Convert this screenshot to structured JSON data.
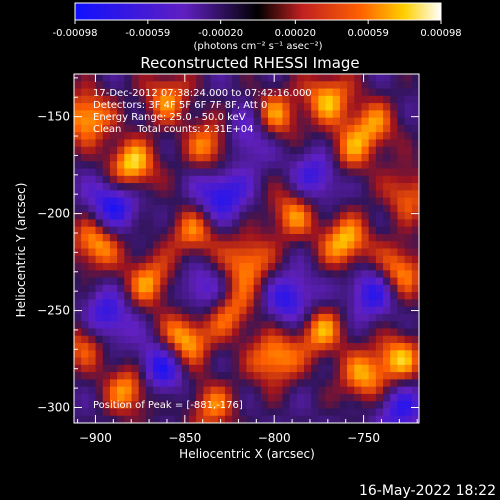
{
  "colorbar": {
    "ticks": [
      "-0.00098",
      "-0.00059",
      "-0.00020",
      "0.00020",
      "0.00059",
      "0.00098"
    ],
    "units_label": "(photons cm⁻² s⁻¹ asec⁻²)",
    "range": [
      -0.00098,
      0.00098
    ]
  },
  "footer": {
    "timestamp": "16-May-2022 18:22"
  },
  "chart_data": {
    "type": "heatmap",
    "title": "Reconstructed RHESSI Image",
    "xlabel": "Heliocentric X (arcsec)",
    "ylabel": "Heliocentric Y (arcsec)",
    "xlim": [
      -912,
      -719
    ],
    "ylim": [
      -308,
      -128
    ],
    "x_ticks": [
      -900,
      -850,
      -800,
      -750
    ],
    "y_ticks": [
      -150,
      -200,
      -250,
      -300
    ],
    "x_tick_labels": [
      "−900",
      "−850",
      "−800",
      "−750"
    ],
    "y_tick_labels": [
      "−150",
      "−200",
      "−250",
      "−300"
    ],
    "annotations": {
      "time_range": "17-Dec-2012 07:38:24.000 to 07:42:16.000",
      "detectors": "Detectors: 3F 4F 5F 6F 7F 8F, Att 0",
      "energy": "Energy Range: 25.0 - 50.0 keV",
      "method": "Clean     Total counts: 2.31E+04",
      "peak": "Position of Peak = [-881,-176]"
    },
    "peak_position": [
      -881,
      -176
    ],
    "blobs": [
      {
        "x": -905,
        "y": -150,
        "v": 0.9
      },
      {
        "x": -880,
        "y": -176,
        "v": 1.0
      },
      {
        "x": -860,
        "y": -140,
        "v": 0.7
      },
      {
        "x": -835,
        "y": -165,
        "v": 0.8
      },
      {
        "x": -800,
        "y": -150,
        "v": 0.75
      },
      {
        "x": -770,
        "y": -140,
        "v": 0.8
      },
      {
        "x": -745,
        "y": -155,
        "v": 0.7
      },
      {
        "x": -725,
        "y": -190,
        "v": 0.65
      },
      {
        "x": -900,
        "y": -215,
        "v": 0.85
      },
      {
        "x": -870,
        "y": -235,
        "v": 0.75
      },
      {
        "x": -845,
        "y": -210,
        "v": 0.7
      },
      {
        "x": -815,
        "y": -225,
        "v": 0.8
      },
      {
        "x": -790,
        "y": -200,
        "v": 0.7
      },
      {
        "x": -760,
        "y": -215,
        "v": 0.9
      },
      {
        "x": -730,
        "y": -230,
        "v": 0.85
      },
      {
        "x": -905,
        "y": -265,
        "v": 0.8
      },
      {
        "x": -880,
        "y": -290,
        "v": 0.9
      },
      {
        "x": -850,
        "y": -265,
        "v": 0.95
      },
      {
        "x": -825,
        "y": -250,
        "v": 0.7
      },
      {
        "x": -800,
        "y": -275,
        "v": 0.85
      },
      {
        "x": -775,
        "y": -260,
        "v": 0.8
      },
      {
        "x": -750,
        "y": -285,
        "v": 0.75
      },
      {
        "x": -730,
        "y": -275,
        "v": 0.8
      },
      {
        "x": -835,
        "y": -300,
        "v": 0.65
      },
      {
        "x": -760,
        "y": -170,
        "v": 0.6
      }
    ],
    "lows": [
      {
        "x": -890,
        "y": -195,
        "v": 0.8
      },
      {
        "x": -830,
        "y": -190,
        "v": 0.75
      },
      {
        "x": -790,
        "y": -245,
        "v": 0.7
      },
      {
        "x": -895,
        "y": -255,
        "v": 0.8
      },
      {
        "x": -865,
        "y": -280,
        "v": 0.85
      },
      {
        "x": -745,
        "y": -240,
        "v": 0.7
      },
      {
        "x": -815,
        "y": -160,
        "v": 0.6
      },
      {
        "x": -730,
        "y": -300,
        "v": 0.6
      },
      {
        "x": -775,
        "y": -180,
        "v": 0.65
      },
      {
        "x": -840,
        "y": -240,
        "v": 0.55
      }
    ]
  }
}
